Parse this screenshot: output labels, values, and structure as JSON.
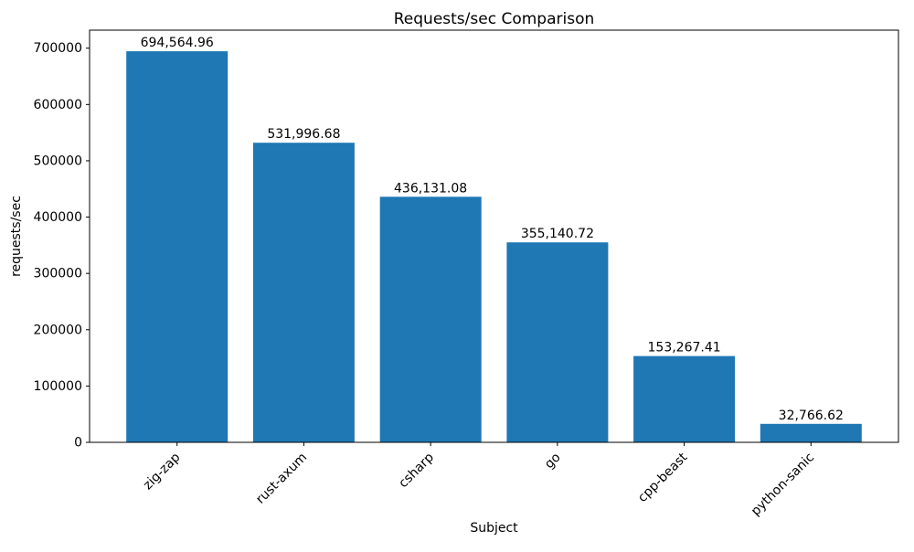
{
  "chart_data": {
    "type": "bar",
    "title": "Requests/sec Comparison",
    "xlabel": "Subject",
    "ylabel": "requests/sec",
    "categories": [
      "zig-zap",
      "rust-axum",
      "csharp",
      "go",
      "cpp-beast",
      "python-sanic"
    ],
    "values": [
      694564.96,
      531996.68,
      436131.08,
      355140.72,
      153267.41,
      32766.62
    ],
    "value_labels": [
      "694,564.96",
      "531,996.68",
      "436,131.08",
      "355,140.72",
      "153,267.41",
      "32,766.62"
    ],
    "ytick_labels": [
      "0",
      "100000",
      "200000",
      "300000",
      "400000",
      "500000",
      "600000",
      "700000"
    ],
    "ytick_values": [
      0,
      100000,
      200000,
      300000,
      400000,
      500000,
      600000,
      700000
    ],
    "ylim": [
      0,
      732000
    ],
    "grid": false,
    "legend_position": "none",
    "x_tick_rotation_deg": 45,
    "bar_color": "#1f77b4",
    "background_color": "#ffffff",
    "axis_color": "#000000"
  }
}
